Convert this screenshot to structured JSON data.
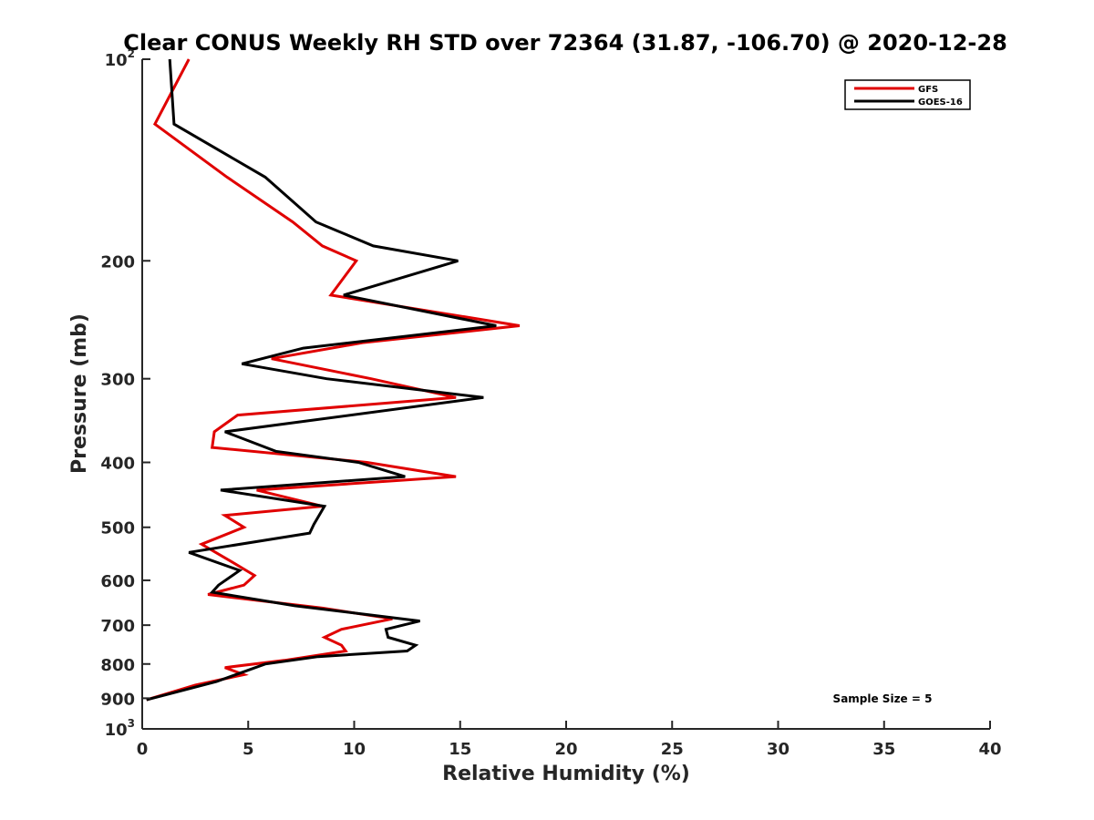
{
  "chart_data": {
    "type": "line",
    "title": "Clear CONUS Weekly RH STD over 72364 (31.87, -106.70) @ 2020-12-28",
    "xlabel": "Relative Humidity (%)",
    "ylabel": "Pressure (mb)",
    "xlim": [
      0,
      40
    ],
    "ylim": [
      100,
      1000
    ],
    "y_scale": "log",
    "y_reversed": true,
    "grid": false,
    "x_ticks": [
      0,
      5,
      10,
      15,
      20,
      25,
      30,
      35,
      40
    ],
    "x_tick_labels": [
      "0",
      "5",
      "10",
      "15",
      "20",
      "25",
      "30",
      "35",
      "40"
    ],
    "y_ticks": [
      100,
      200,
      300,
      400,
      500,
      600,
      700,
      800,
      900,
      1000
    ],
    "y_tick_labels": [
      {
        "base": "10",
        "sup": "2"
      },
      {
        "base": "200",
        "sup": ""
      },
      {
        "base": "300",
        "sup": ""
      },
      {
        "base": "400",
        "sup": ""
      },
      {
        "base": "500",
        "sup": ""
      },
      {
        "base": "600",
        "sup": ""
      },
      {
        "base": "700",
        "sup": ""
      },
      {
        "base": "800",
        "sup": ""
      },
      {
        "base": "900",
        "sup": ""
      },
      {
        "base": "10",
        "sup": "3"
      }
    ],
    "legend_position": "top-right",
    "annotation": "Sample Size = 5",
    "series": [
      {
        "name": "GFS",
        "color": "#e00000",
        "points": [
          [
            2.2,
            100
          ],
          [
            0.6,
            125
          ],
          [
            4.0,
            150
          ],
          [
            7.1,
            175
          ],
          [
            8.5,
            190
          ],
          [
            10.1,
            200
          ],
          [
            8.9,
            225
          ],
          [
            17.8,
            250
          ],
          [
            10.4,
            265
          ],
          [
            6.1,
            280
          ],
          [
            10.8,
            300
          ],
          [
            14.8,
            320
          ],
          [
            4.5,
            340
          ],
          [
            3.4,
            360
          ],
          [
            3.3,
            380
          ],
          [
            10.6,
            400
          ],
          [
            14.8,
            420
          ],
          [
            5.4,
            440
          ],
          [
            8.5,
            465
          ],
          [
            3.9,
            480
          ],
          [
            4.8,
            500
          ],
          [
            2.8,
            530
          ],
          [
            4.1,
            560
          ],
          [
            5.3,
            590
          ],
          [
            4.8,
            610
          ],
          [
            3.1,
            630
          ],
          [
            8.5,
            660
          ],
          [
            11.8,
            685
          ],
          [
            9.4,
            710
          ],
          [
            8.6,
            730
          ],
          [
            9.4,
            750
          ],
          [
            9.6,
            765
          ],
          [
            6.7,
            790
          ],
          [
            3.9,
            810
          ],
          [
            4.8,
            830
          ],
          [
            2.5,
            860
          ],
          [
            0.2,
            905
          ]
        ]
      },
      {
        "name": "GOES-16",
        "color": "#000000",
        "points": [
          [
            1.3,
            100
          ],
          [
            1.5,
            125
          ],
          [
            5.8,
            150
          ],
          [
            8.2,
            175
          ],
          [
            10.9,
            190
          ],
          [
            14.9,
            200
          ],
          [
            9.5,
            225
          ],
          [
            16.7,
            250
          ],
          [
            7.6,
            270
          ],
          [
            4.7,
            285
          ],
          [
            8.7,
            300
          ],
          [
            16.1,
            320
          ],
          [
            3.9,
            360
          ],
          [
            6.3,
            385
          ],
          [
            10.2,
            400
          ],
          [
            12.4,
            420
          ],
          [
            3.7,
            440
          ],
          [
            8.6,
            465
          ],
          [
            8.1,
            495
          ],
          [
            7.9,
            510
          ],
          [
            2.2,
            545
          ],
          [
            4.6,
            580
          ],
          [
            3.6,
            610
          ],
          [
            3.3,
            625
          ],
          [
            7.2,
            655
          ],
          [
            10.6,
            675
          ],
          [
            13.1,
            690
          ],
          [
            11.5,
            710
          ],
          [
            11.6,
            730
          ],
          [
            12.9,
            750
          ],
          [
            12.5,
            765
          ],
          [
            8.3,
            780
          ],
          [
            5.8,
            800
          ],
          [
            3.5,
            850
          ],
          [
            0.2,
            905
          ]
        ]
      }
    ]
  }
}
